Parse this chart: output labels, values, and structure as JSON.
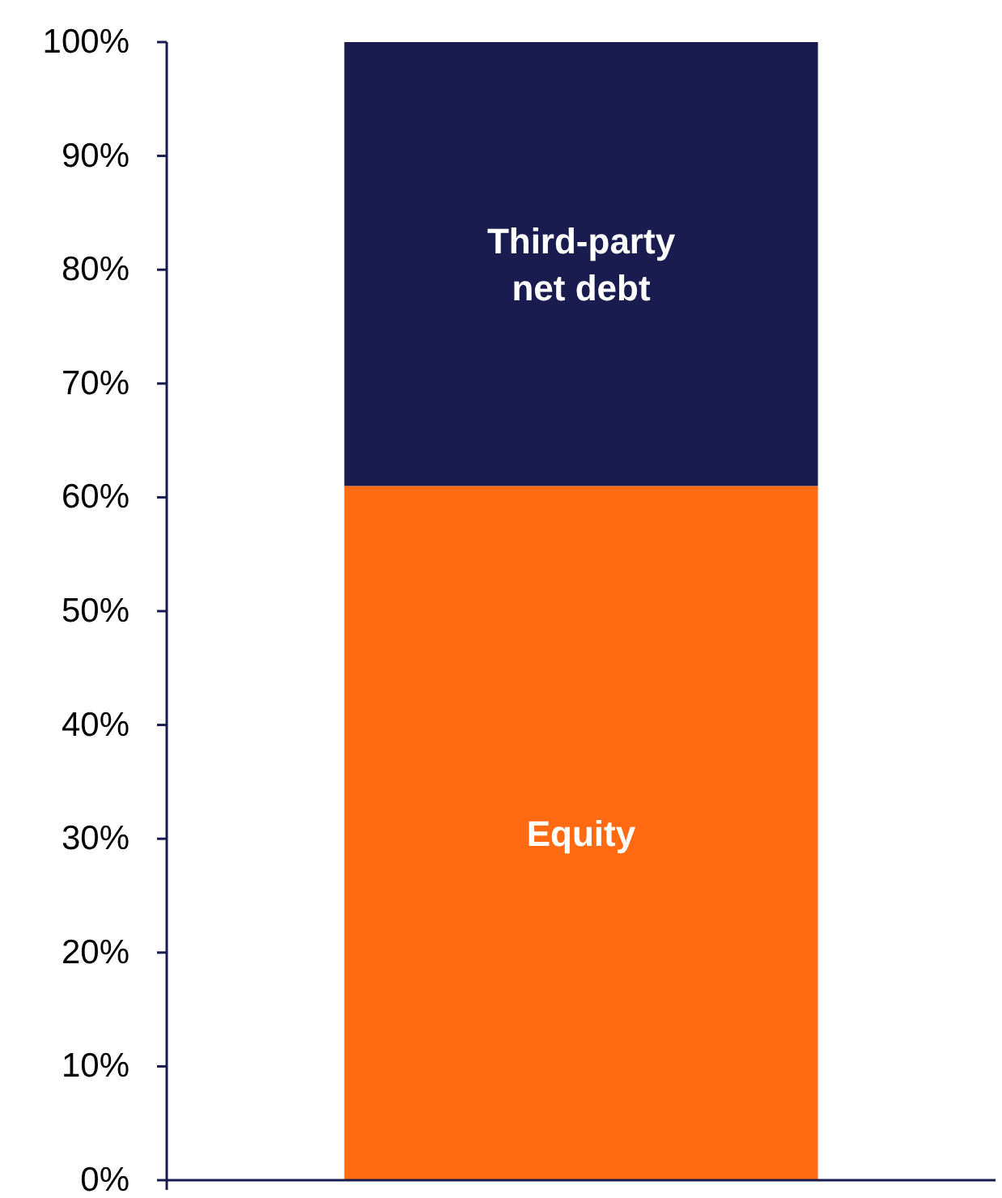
{
  "chart_data": {
    "type": "bar",
    "stacked": true,
    "categories": [
      null
    ],
    "series": [
      {
        "name": "Equity",
        "color": "#ff6a13",
        "values": [
          61
        ]
      },
      {
        "name": "Third-party net debt",
        "color": "#1a1c4f",
        "values": [
          39
        ]
      }
    ],
    "ylim": [
      0,
      100
    ],
    "yticks": [
      {
        "value": 0,
        "label": "0%"
      },
      {
        "value": 10,
        "label": "10%"
      },
      {
        "value": 20,
        "label": "20%"
      },
      {
        "value": 30,
        "label": "30%"
      },
      {
        "value": 40,
        "label": "40%"
      },
      {
        "value": 50,
        "label": "50%"
      },
      {
        "value": 60,
        "label": "60%"
      },
      {
        "value": 70,
        "label": "70%"
      },
      {
        "value": 80,
        "label": "80%"
      },
      {
        "value": 90,
        "label": "90%"
      },
      {
        "value": 100,
        "label": "100%"
      }
    ],
    "grid": false,
    "legend": false
  }
}
